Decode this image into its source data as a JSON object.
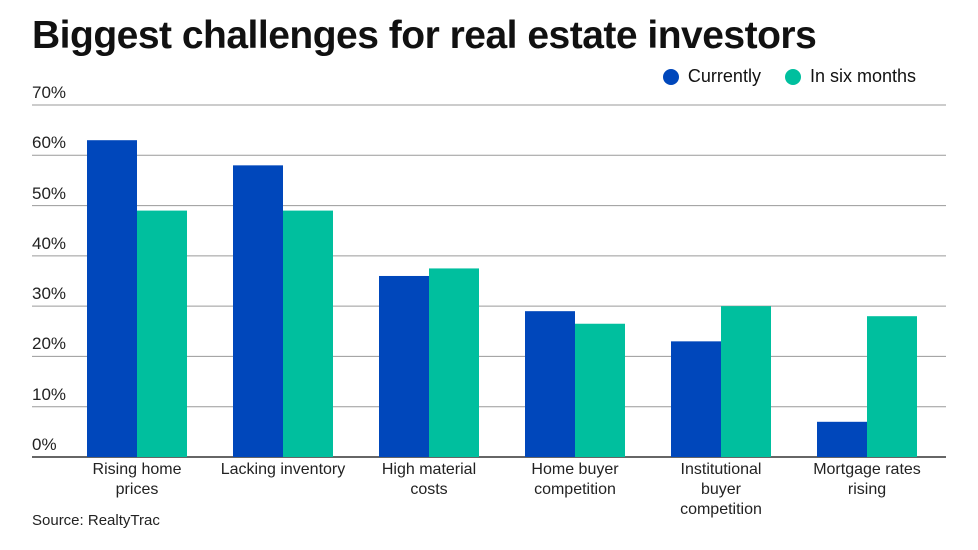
{
  "title": "Biggest challenges for real estate investors",
  "source": "Source: RealtyTrac",
  "colors": {
    "currently": "#0047BB",
    "six_months": "#00BF9E",
    "grid": "#9a9a9a",
    "axis": "#333333"
  },
  "chart_data": {
    "type": "bar",
    "title": "Biggest challenges for real estate investors",
    "categories": [
      [
        "Rising home",
        "prices"
      ],
      [
        "Lacking inventory"
      ],
      [
        "High material",
        "costs"
      ],
      [
        "Home buyer",
        "competition"
      ],
      [
        "Institutional",
        "buyer",
        "competition"
      ],
      [
        "Mortgage rates",
        "rising"
      ]
    ],
    "series": [
      {
        "name": "Currently",
        "values": [
          63,
          58,
          36,
          29,
          23,
          7
        ]
      },
      {
        "name": "In six months",
        "values": [
          49,
          49,
          37.5,
          26.5,
          30,
          28
        ]
      }
    ],
    "ylim": [
      0,
      70
    ],
    "yticks": [
      0,
      10,
      20,
      30,
      40,
      50,
      60,
      70
    ],
    "ytick_labels": [
      "0%",
      "10%",
      "20%",
      "30%",
      "40%",
      "50%",
      "60%",
      "70%"
    ],
    "grid": true,
    "legend_position": "top-right"
  }
}
